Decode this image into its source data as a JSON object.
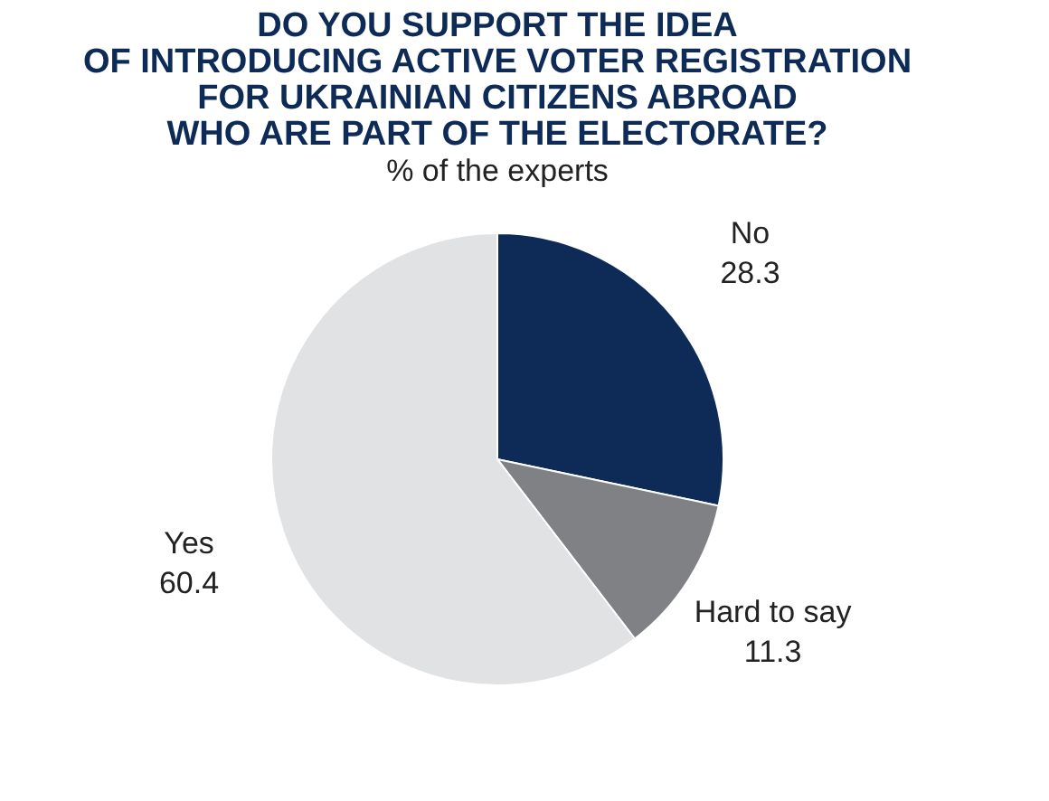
{
  "chart_data": {
    "type": "pie",
    "title": [
      "DO YOU SUPPORT THE IDEA",
      "OF INTRODUCING ACTIVE VOTER REGISTRATION",
      "FOR UKRAINIAN CITIZENS ABROAD",
      "WHO ARE PART OF THE ELECTORATE?"
    ],
    "subtitle": "% of the experts",
    "categories": [
      "No",
      "Hard to say",
      "Yes"
    ],
    "values": [
      28.3,
      11.3,
      60.4
    ],
    "colors": [
      "#0d2b56",
      "#808184",
      "#e1e2e4"
    ],
    "data_labels": true,
    "legend": false
  }
}
